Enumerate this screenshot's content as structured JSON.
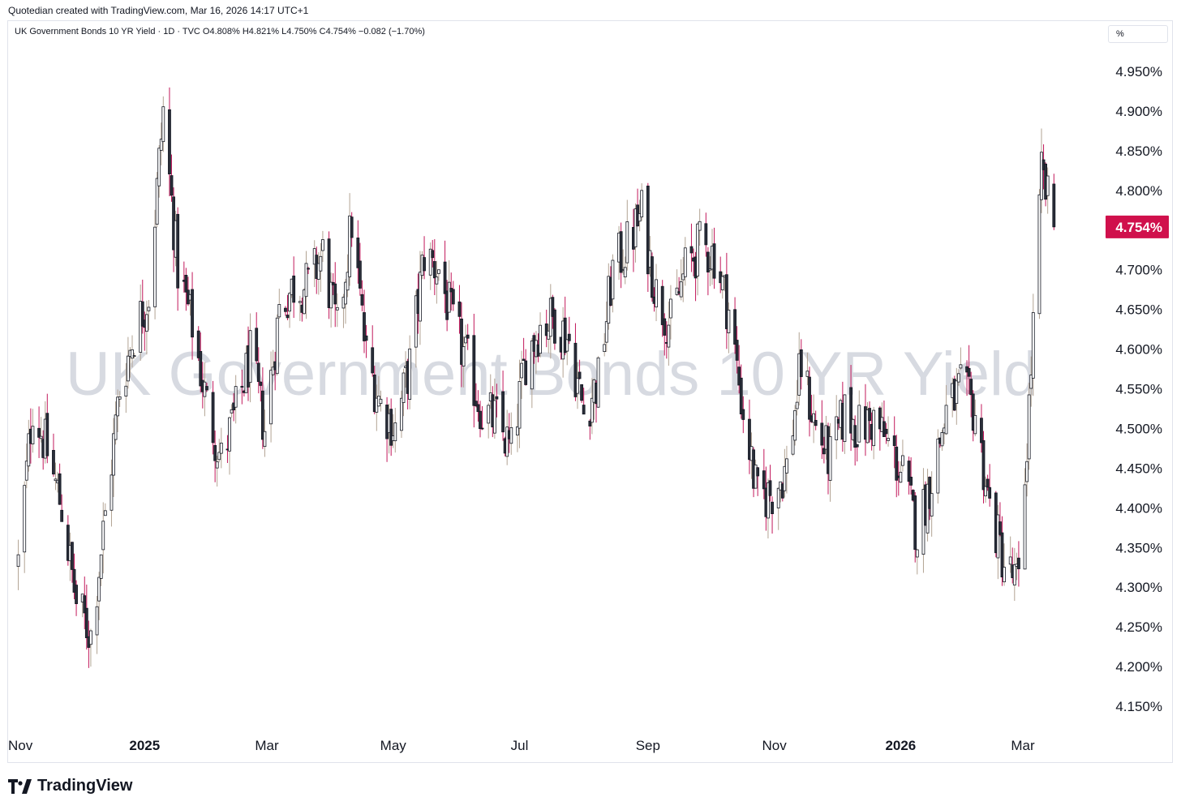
{
  "header": {
    "credit": "Quotedian created with TradingView.com, Mar 16, 2026 14:17 UTC+1"
  },
  "legend": {
    "text": "UK Government Bonds 10 YR Yield · 1D · TVC  O4.808%  H4.821%  L4.750%  C4.754%  −0.082 (−1.70%)"
  },
  "unit_button": "%",
  "watermark": "UK Government Bonds 10 YR Yield",
  "footer": {
    "logo_text": "TradingView"
  },
  "colors": {
    "up_body": "#ffffff",
    "down_body": "#2a2e39",
    "wick_up": "#b2a393",
    "wick_down": "#c2185b",
    "price_tag": "#d0104c"
  },
  "chart_data": {
    "type": "candlestick",
    "title": "",
    "xlabel": "",
    "ylabel": "",
    "ylim": [
      4.12,
      4.99
    ],
    "y_ticks": [
      "4.950%",
      "4.900%",
      "4.850%",
      "4.800%",
      "4.750%",
      "4.700%",
      "4.650%",
      "4.600%",
      "4.550%",
      "4.500%",
      "4.450%",
      "4.400%",
      "4.350%",
      "4.300%",
      "4.250%",
      "4.200%",
      "4.150%"
    ],
    "y_tick_values": [
      4.95,
      4.9,
      4.85,
      4.8,
      4.75,
      4.7,
      4.65,
      4.6,
      4.55,
      4.5,
      4.45,
      4.4,
      4.35,
      4.3,
      4.25,
      4.2,
      4.15
    ],
    "x_ticks": [
      {
        "label": "Nov",
        "date": "2024-11-01",
        "bold": false
      },
      {
        "label": "2025",
        "date": "2025-01-01",
        "bold": true
      },
      {
        "label": "Mar",
        "date": "2025-03-01",
        "bold": false
      },
      {
        "label": "May",
        "date": "2025-05-01",
        "bold": false
      },
      {
        "label": "Jul",
        "date": "2025-07-01",
        "bold": false
      },
      {
        "label": "Sep",
        "date": "2025-09-01",
        "bold": false
      },
      {
        "label": "Nov",
        "date": "2025-11-01",
        "bold": false
      },
      {
        "label": "2026",
        "date": "2026-01-01",
        "bold": true
      },
      {
        "label": "Mar",
        "date": "2026-03-01",
        "bold": false
      }
    ],
    "last_price": 4.754,
    "last_price_label": "4.754%",
    "ohlc": {
      "open": 4.808,
      "high": 4.821,
      "low": 4.75,
      "close": 4.754,
      "change": -0.082,
      "change_pct": -1.7
    },
    "close_path": [
      [
        "2024-11-01",
        4.33
      ],
      [
        "2024-11-08",
        4.53
      ],
      [
        "2024-11-15",
        4.47
      ],
      [
        "2024-11-22",
        4.4
      ],
      [
        "2024-11-29",
        4.28
      ],
      [
        "2024-12-06",
        4.24
      ],
      [
        "2024-12-13",
        4.39
      ],
      [
        "2024-12-20",
        4.55
      ],
      [
        "2024-12-27",
        4.62
      ],
      [
        "2025-01-03",
        4.67
      ],
      [
        "2025-01-10",
        4.9
      ],
      [
        "2025-01-17",
        4.7
      ],
      [
        "2025-01-24",
        4.63
      ],
      [
        "2025-01-31",
        4.53
      ],
      [
        "2025-02-07",
        4.46
      ],
      [
        "2025-02-14",
        4.52
      ],
      [
        "2025-02-21",
        4.59
      ],
      [
        "2025-02-28",
        4.5
      ],
      [
        "2025-03-07",
        4.65
      ],
      [
        "2025-03-14",
        4.68
      ],
      [
        "2025-03-21",
        4.68
      ],
      [
        "2025-03-28",
        4.72
      ],
      [
        "2025-04-04",
        4.62
      ],
      [
        "2025-04-11",
        4.76
      ],
      [
        "2025-04-18",
        4.59
      ],
      [
        "2025-04-25",
        4.53
      ],
      [
        "2025-05-02",
        4.5
      ],
      [
        "2025-05-09",
        4.58
      ],
      [
        "2025-05-16",
        4.72
      ],
      [
        "2025-05-23",
        4.7
      ],
      [
        "2025-05-30",
        4.63
      ],
      [
        "2025-06-06",
        4.58
      ],
      [
        "2025-06-13",
        4.52
      ],
      [
        "2025-06-20",
        4.51
      ],
      [
        "2025-06-27",
        4.47
      ],
      [
        "2025-07-04",
        4.59
      ],
      [
        "2025-07-11",
        4.63
      ],
      [
        "2025-07-18",
        4.64
      ],
      [
        "2025-07-25",
        4.61
      ],
      [
        "2025-08-01",
        4.52
      ],
      [
        "2025-08-08",
        4.56
      ],
      [
        "2025-08-15",
        4.7
      ],
      [
        "2025-08-22",
        4.73
      ],
      [
        "2025-08-29",
        4.77
      ],
      [
        "2025-09-05",
        4.67
      ],
      [
        "2025-09-12",
        4.63
      ],
      [
        "2025-09-19",
        4.7
      ],
      [
        "2025-09-26",
        4.73
      ],
      [
        "2025-10-03",
        4.72
      ],
      [
        "2025-10-10",
        4.65
      ],
      [
        "2025-10-17",
        4.52
      ],
      [
        "2025-10-24",
        4.41
      ],
      [
        "2025-10-31",
        4.42
      ],
      [
        "2025-11-07",
        4.45
      ],
      [
        "2025-11-14",
        4.58
      ],
      [
        "2025-11-21",
        4.5
      ],
      [
        "2025-11-28",
        4.46
      ],
      [
        "2025-12-05",
        4.52
      ],
      [
        "2025-12-12",
        4.5
      ],
      [
        "2025-12-19",
        4.51
      ],
      [
        "2025-12-26",
        4.48
      ],
      [
        "2026-01-02",
        4.44
      ],
      [
        "2026-01-09",
        4.37
      ],
      [
        "2026-01-16",
        4.44
      ],
      [
        "2026-01-23",
        4.52
      ],
      [
        "2026-01-30",
        4.55
      ],
      [
        "2026-02-06",
        4.52
      ],
      [
        "2026-02-13",
        4.4
      ],
      [
        "2026-02-20",
        4.33
      ],
      [
        "2026-02-27",
        4.3
      ],
      [
        "2026-03-04",
        4.53
      ],
      [
        "2026-03-10",
        4.82
      ],
      [
        "2026-03-16",
        4.754
      ]
    ]
  }
}
